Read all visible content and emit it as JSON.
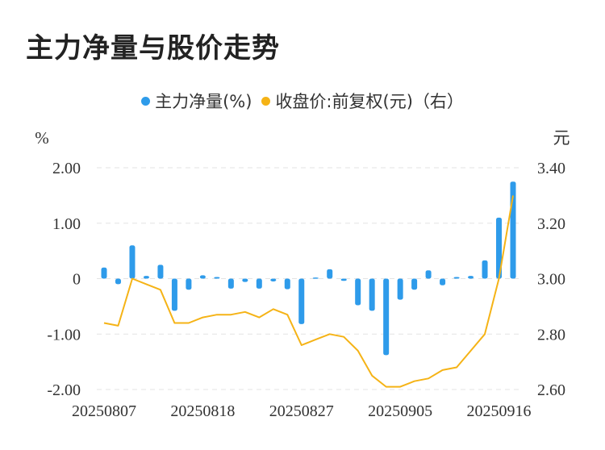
{
  "title": "主力净量与股价走势",
  "colors": {
    "bar": "#2E9BEA",
    "line": "#F5B316",
    "grid": "#E3E3E3",
    "text": "#333333"
  },
  "chart_data": {
    "type": "bar",
    "legend": [
      {
        "label": "主力净量(%)",
        "color": "#2E9BEA"
      },
      {
        "label": "收盘价:前复权(元)（右）",
        "color": "#F5B316"
      }
    ],
    "ylabel_left": "%",
    "ylabel_right": "元",
    "y_left": {
      "min": -2.0,
      "max": 2.0,
      "ticks": [
        2.0,
        1.0,
        0,
        -1.0,
        -2.0
      ],
      "tick_labels": [
        "2.00",
        "1.00",
        "0",
        "-1.00",
        "-2.00"
      ]
    },
    "y_right": {
      "min": 2.6,
      "max": 3.4,
      "ticks": [
        3.4,
        3.2,
        3.0,
        2.8,
        2.6
      ],
      "tick_labels": [
        "3.40",
        "3.20",
        "3.00",
        "2.80",
        "2.60"
      ]
    },
    "x_tick_labels": [
      "20250807",
      "20250818",
      "20250827",
      "20250905",
      "20250916"
    ],
    "x_tick_index": [
      0,
      7,
      14,
      21,
      28
    ],
    "series": [
      {
        "name": "主力净量(%)",
        "type": "bar",
        "values": [
          0.2,
          -0.1,
          0.6,
          0.05,
          0.25,
          -0.58,
          -0.2,
          0.06,
          0.03,
          -0.18,
          -0.06,
          -0.18,
          -0.05,
          -0.19,
          -0.82,
          0.02,
          0.17,
          -0.04,
          -0.48,
          -0.58,
          -1.38,
          -0.38,
          -0.2,
          0.15,
          -0.12,
          0.03,
          0.05,
          0.33,
          1.1,
          1.75
        ]
      },
      {
        "name": "收盘价:前复权(元)（右）",
        "type": "line",
        "values": [
          2.84,
          2.83,
          3.0,
          2.98,
          2.96,
          2.84,
          2.84,
          2.86,
          2.87,
          2.87,
          2.88,
          2.86,
          2.89,
          2.87,
          2.76,
          2.78,
          2.8,
          2.79,
          2.74,
          2.65,
          2.61,
          2.61,
          2.63,
          2.64,
          2.67,
          2.68,
          2.74,
          2.8,
          3.0,
          3.3
        ]
      }
    ]
  }
}
